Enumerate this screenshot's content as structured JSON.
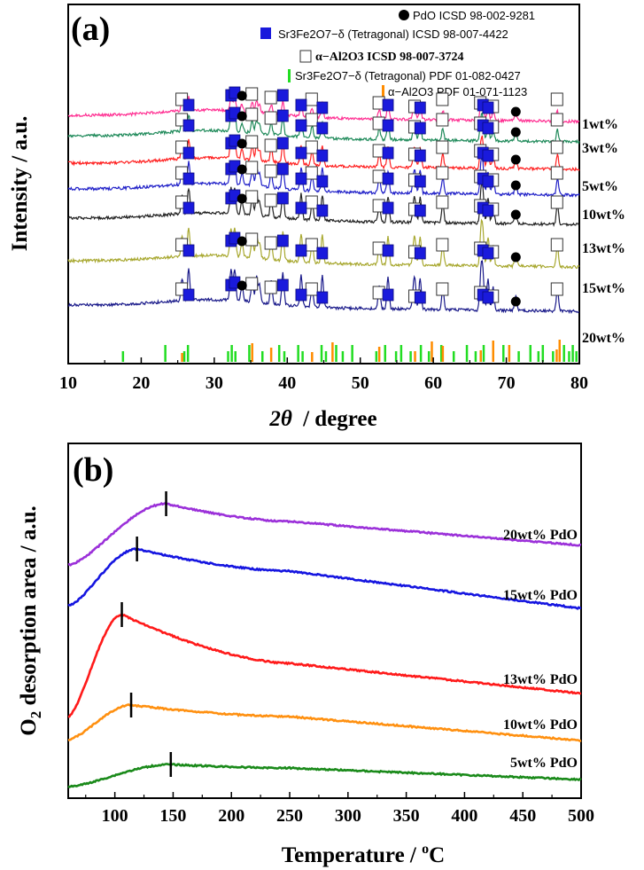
{
  "chart_data": [
    {
      "panel": "(a)",
      "type": "line",
      "xlabel_symbol": "2θ",
      "xlabel_unit": "/ degree",
      "ylabel": "Intensity / a.u.",
      "xlim": [
        10,
        80
      ],
      "xticks": [
        "10",
        "20",
        "30",
        "40",
        "50",
        "60",
        "70",
        "80"
      ],
      "legend_placement": "top-right",
      "legend": [
        {
          "symbol": "circle",
          "color": "#000000",
          "text": "PdO ICSD 98-002-9281"
        },
        {
          "symbol": "square-filled",
          "color": "#1a1adc",
          "text": "Sr3Fe2O7−δ (Tetragonal) ICSD 98-007-4422"
        },
        {
          "symbol": "square-open",
          "color": "#000000",
          "text": "α−Al2O3 ICSD 98-007-3724"
        },
        {
          "symbol": "bar",
          "color": "#22dd22",
          "text": "Sr3Fe2O7−δ (Tetragonal) PDF 01-082-0427"
        },
        {
          "symbol": "bar",
          "color": "#ff8c00",
          "text": "α−Al2O3 PDF 01-071-1123"
        }
      ],
      "series": [
        {
          "name": "1wt%",
          "color": "#ff2f92"
        },
        {
          "name": "3wt%",
          "color": "#1f8a5a"
        },
        {
          "name": "5wt%",
          "color": "#ff2020"
        },
        {
          "name": "10wt%",
          "color": "#2020c8"
        },
        {
          "name": "13wt%",
          "color": "#222222"
        },
        {
          "name": "15wt%",
          "color": "#a8a830"
        },
        {
          "name": "20wt%",
          "color": "#1a1a8a"
        }
      ],
      "peaks": {
        "alumina": [
          25.6,
          35.2,
          37.8,
          43.4,
          52.6,
          57.5,
          61.3,
          66.5,
          68.2,
          77.0
        ],
        "srfeo": [
          26.5,
          32.3,
          32.8,
          39.4,
          41.9,
          44.8,
          53.8,
          58.2,
          66.8,
          67.5
        ],
        "pdo": [
          33.8,
          71.3
        ]
      },
      "reference_green": [
        17.5,
        23.3,
        25.9,
        26.4,
        31.9,
        32.4,
        32.9,
        34.8,
        36.6,
        38.9,
        39.6,
        41.5,
        42.1,
        44.7,
        45.3,
        46.7,
        47.6,
        48.9,
        52.2,
        53.4,
        54.9,
        55.6,
        56.9,
        58.3,
        59.4,
        61.1,
        62.8,
        64.6,
        65.8,
        66.9,
        68.2,
        69.6,
        71.7,
        73.3,
        74.4,
        75.0,
        76.4,
        77.9,
        78.6,
        79.1,
        79.6
      ],
      "reference_orange": [
        25.6,
        35.2,
        37.8,
        43.4,
        46.2,
        52.6,
        57.5,
        59.8,
        61.3,
        66.5,
        68.2,
        70.4,
        76.9,
        77.3
      ]
    },
    {
      "panel": "(b)",
      "type": "line",
      "xlabel": "Temperature / °C",
      "ylabel": "O2 desorption area / a.u.",
      "xlim": [
        60,
        500
      ],
      "xticks": [
        "100",
        "150",
        "200",
        "250",
        "300",
        "350",
        "400",
        "450",
        "500"
      ],
      "series": [
        {
          "name": "20wt% PdO",
          "color": "#9b30d9",
          "peak_temperature": 144
        },
        {
          "name": "15wt% PdO",
          "color": "#1515e0",
          "peak_temperature": 119
        },
        {
          "name": "13wt% PdO",
          "color": "#ff1a1a",
          "peak_temperature": 106
        },
        {
          "name": "10wt% PdO",
          "color": "#ff9010",
          "peak_temperature": 114
        },
        {
          "name": "5wt% PdO",
          "color": "#1a8a1a",
          "peak_temperature": 148
        }
      ]
    }
  ]
}
